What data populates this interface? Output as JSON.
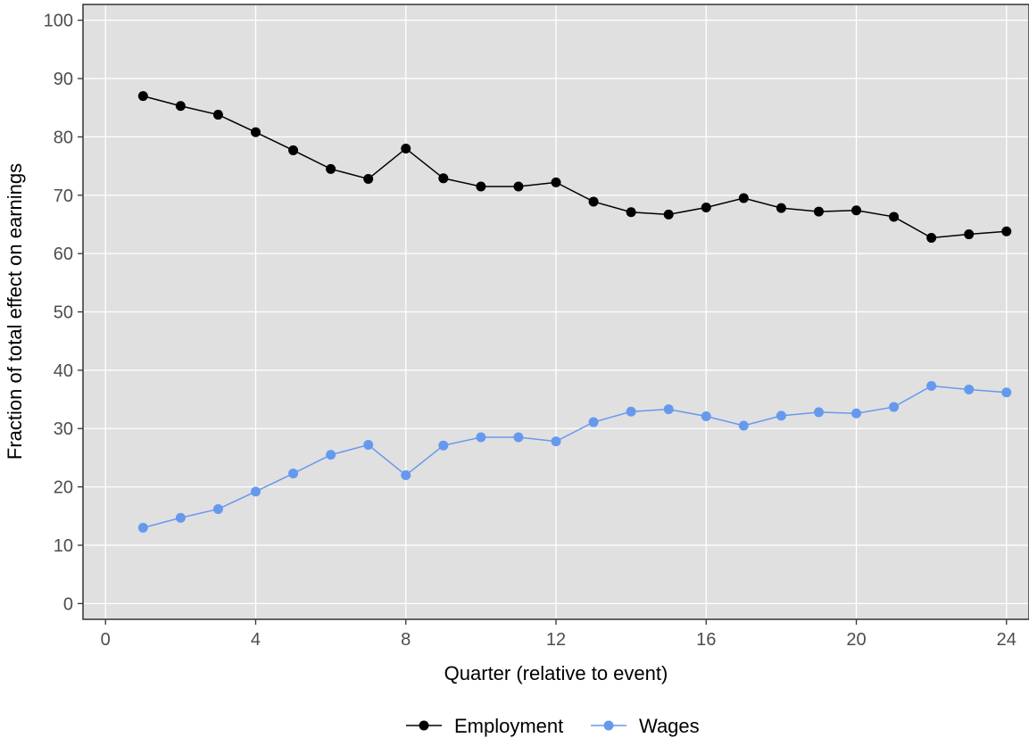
{
  "chart_data": {
    "type": "line",
    "title": "",
    "xlabel": "Quarter (relative to event)",
    "ylabel": "Fraction of total effect on earnings",
    "xlim": [
      -0.6,
      24.6
    ],
    "ylim": [
      -2.7,
      102.7
    ],
    "x_ticks": [
      0,
      4,
      8,
      12,
      16,
      20,
      24
    ],
    "y_ticks": [
      0,
      10,
      20,
      30,
      40,
      50,
      60,
      70,
      80,
      90,
      100
    ],
    "grid": true,
    "legend_position": "bottom",
    "x": [
      1,
      2,
      3,
      4,
      5,
      6,
      7,
      8,
      9,
      10,
      11,
      12,
      13,
      14,
      15,
      16,
      17,
      18,
      19,
      20,
      21,
      22,
      23,
      24
    ],
    "series": [
      {
        "name": "Employment",
        "color": "#000000",
        "values": [
          87.0,
          85.3,
          83.8,
          80.8,
          77.7,
          74.5,
          72.8,
          78.0,
          72.9,
          71.5,
          71.5,
          72.2,
          68.9,
          67.1,
          66.7,
          67.9,
          69.5,
          67.8,
          67.2,
          67.4,
          66.3,
          62.7,
          63.3,
          63.8
        ]
      },
      {
        "name": "Wages",
        "color": "#6699ee",
        "values": [
          13.0,
          14.7,
          16.2,
          19.2,
          22.3,
          25.5,
          27.2,
          22.0,
          27.1,
          28.5,
          28.5,
          27.8,
          31.1,
          32.9,
          33.3,
          32.1,
          30.5,
          32.2,
          32.8,
          32.6,
          33.7,
          37.3,
          36.7,
          36.2
        ]
      }
    ]
  }
}
